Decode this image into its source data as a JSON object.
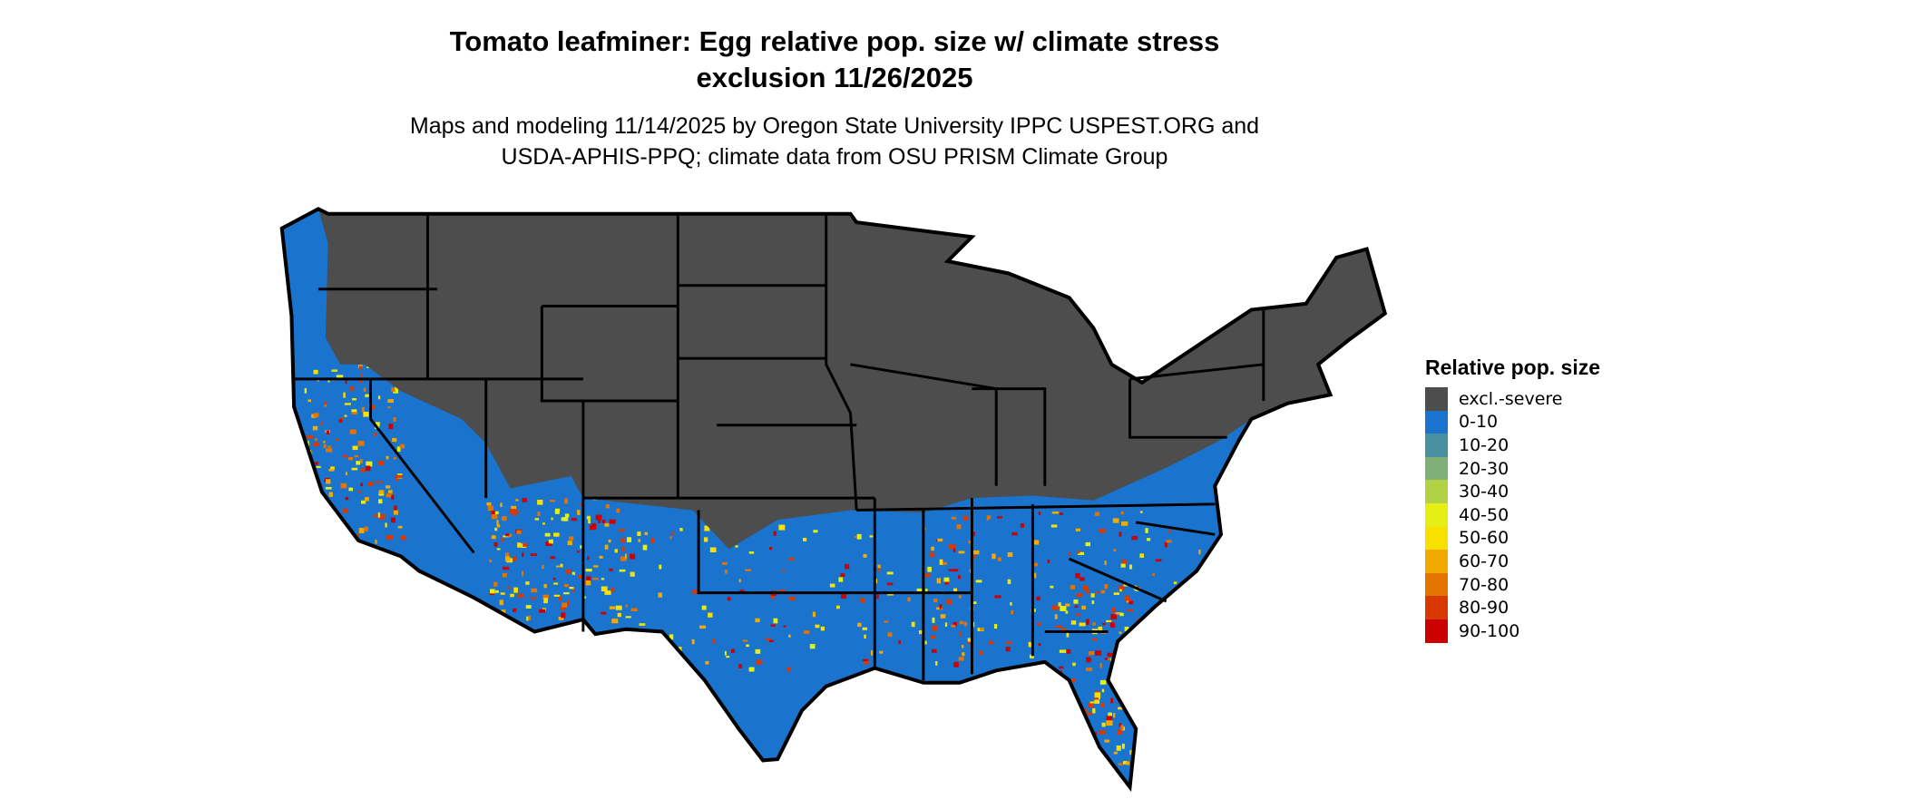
{
  "title": {
    "line1": "Tomato leafminer: Egg relative pop. size w/ climate stress",
    "line2": "exclusion 11/26/2025"
  },
  "subtitle": {
    "line1": "Maps and modeling 11/14/2025 by Oregon State University IPPC USPEST.ORG and",
    "line2": "USDA-APHIS-PPQ; climate data from OSU PRISM Climate Group"
  },
  "map": {
    "region": "Contiguous United States",
    "excluded_color": "#4d4d4d",
    "low_color": "#1a73cc",
    "border_color": "#000000"
  },
  "legend": {
    "title": "Relative pop. size",
    "items": [
      {
        "label": "excl.-severe",
        "color": "#4d4d4d"
      },
      {
        "label": "0-10",
        "color": "#1a73cc"
      },
      {
        "label": "10-20",
        "color": "#4a91a0"
      },
      {
        "label": "20-30",
        "color": "#7eb077"
      },
      {
        "label": "30-40",
        "color": "#b2d147"
      },
      {
        "label": "40-50",
        "color": "#e4f014"
      },
      {
        "label": "50-60",
        "color": "#f8e100"
      },
      {
        "label": "60-70",
        "color": "#f0aa00"
      },
      {
        "label": "70-80",
        "color": "#e47300"
      },
      {
        "label": "80-90",
        "color": "#d93800"
      },
      {
        "label": "90-100",
        "color": "#cc0000"
      }
    ]
  }
}
